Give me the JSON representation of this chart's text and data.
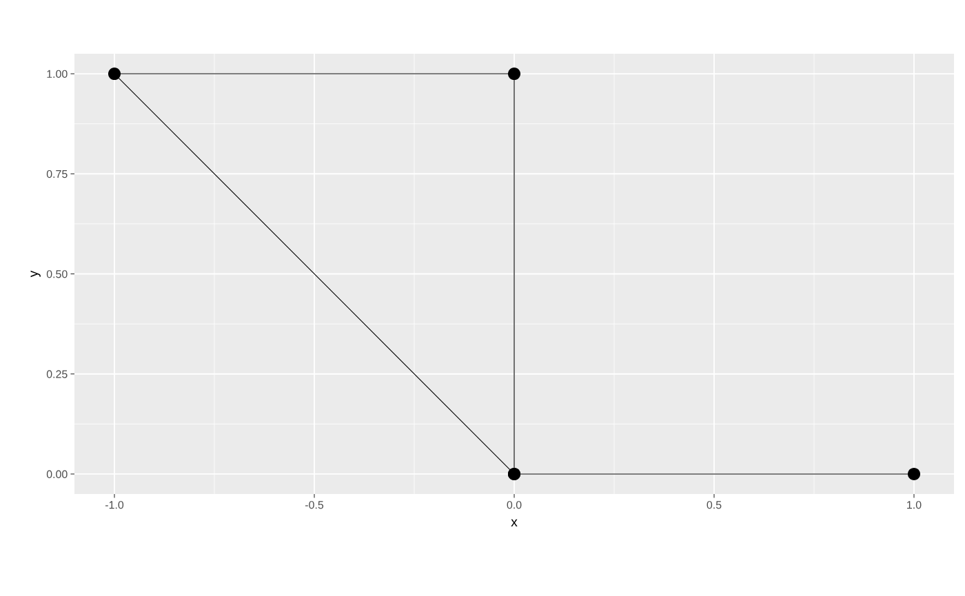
{
  "chart_data": {
    "type": "line",
    "xlabel": "x",
    "ylabel": "y",
    "series": [
      {
        "color": "#000000",
        "x": [
          0,
          0,
          -1,
          0,
          1
        ],
        "values": [
          0,
          1,
          1,
          0,
          0
        ]
      }
    ],
    "xlim": [
      -1.1,
      1.1
    ],
    "xticks": [
      {
        "value": -1,
        "label": "-1.0"
      },
      {
        "value": -0.5,
        "label": "-0.5"
      },
      {
        "value": 0,
        "label": "0.0"
      },
      {
        "value": 0.5,
        "label": "0.5"
      },
      {
        "value": 1,
        "label": "1.0"
      }
    ],
    "ylim": [
      -0.05,
      1.05
    ],
    "yticks": [
      {
        "value": 0,
        "label": "0.00"
      },
      {
        "value": 0.25,
        "label": "0.25"
      },
      {
        "value": 0.5,
        "label": "0.50"
      },
      {
        "value": 0.75,
        "label": "0.75"
      },
      {
        "value": 1,
        "label": "1.00"
      }
    ],
    "grid": true,
    "marker": "circle",
    "line_style": "solid",
    "legend": false
  }
}
